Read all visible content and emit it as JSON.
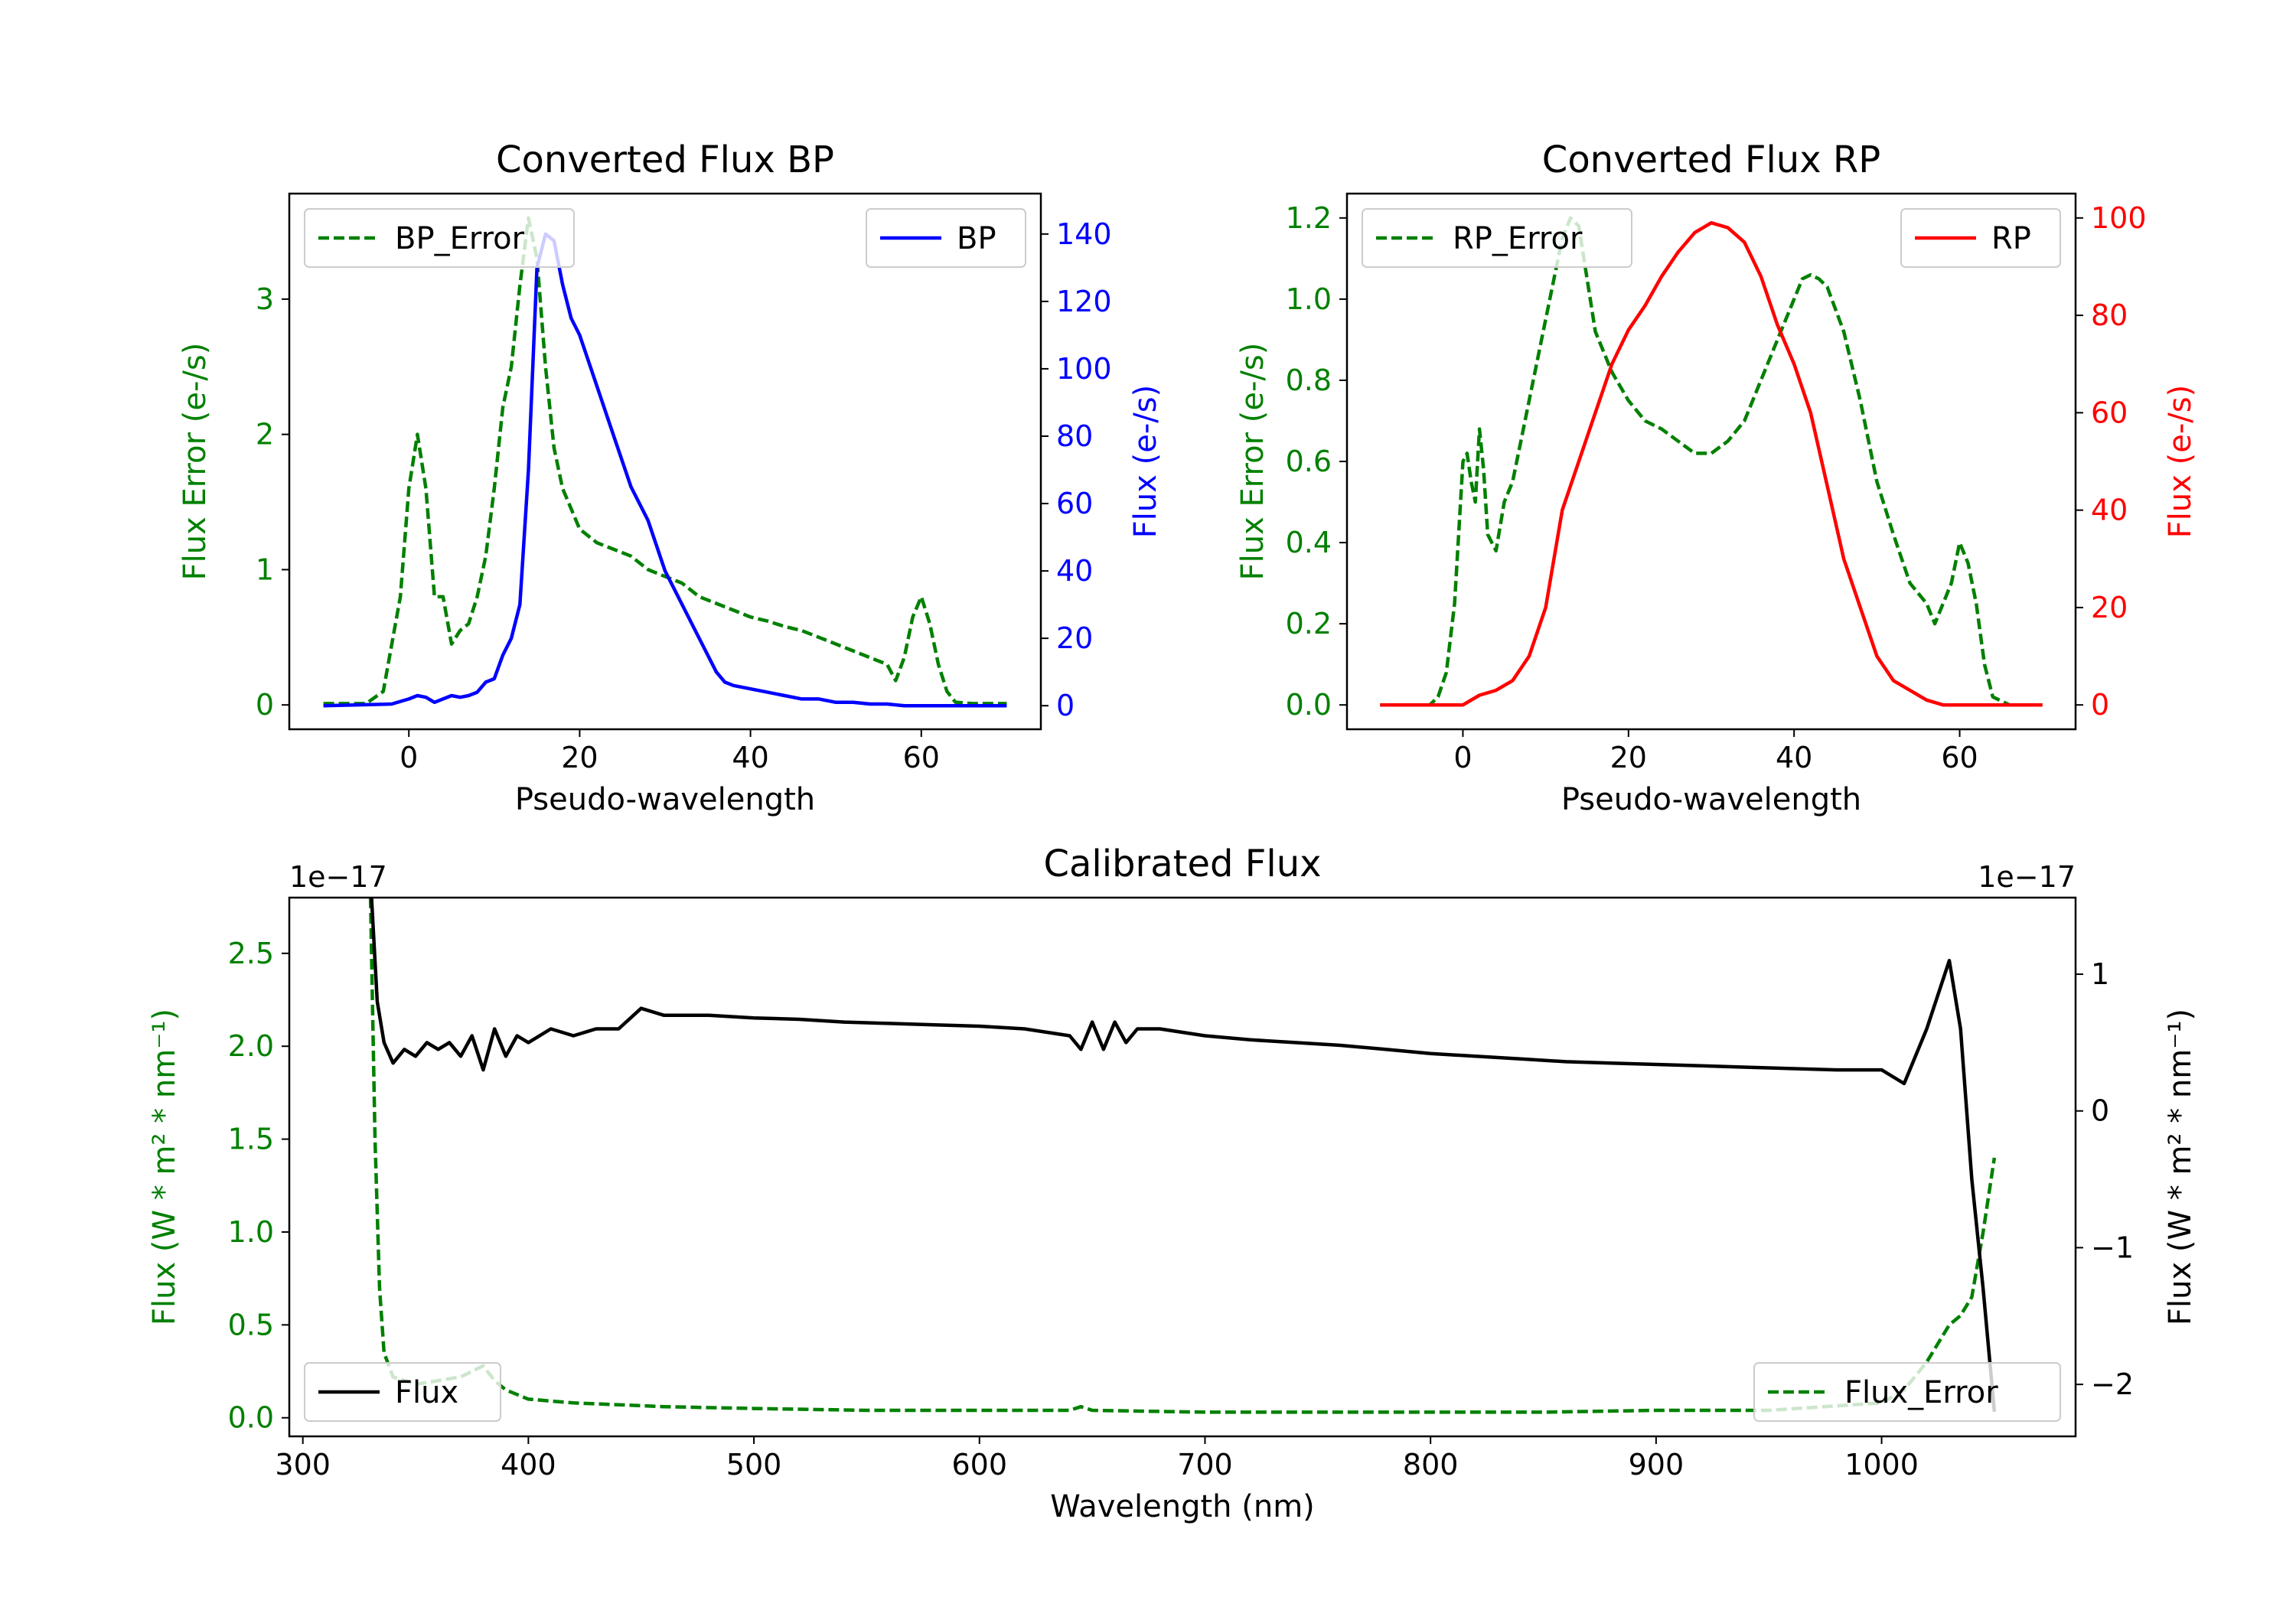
{
  "chart_data": [
    {
      "type": "line",
      "title": "Converted Flux BP",
      "xlabel": "Pseudo-wavelength",
      "ylabel_left": "Flux Error (e-/s)",
      "ylabel_right": "Flux (e-/s)",
      "xlim": [
        -14,
        74
      ],
      "ylim_left": [
        -0.18,
        3.78
      ],
      "ylim_right": [
        -7,
        152
      ],
      "xticks": [
        0,
        20,
        40,
        60
      ],
      "yticks_left": [
        0,
        1,
        2,
        3
      ],
      "yticks_right": [
        0,
        20,
        40,
        60,
        80,
        100,
        120,
        140
      ],
      "legend": [
        {
          "label": "BP_Error",
          "placement": "top-left",
          "style": "dashed",
          "color": "#008000"
        },
        {
          "label": "BP",
          "placement": "top-right",
          "style": "solid",
          "color": "#0000ff"
        }
      ],
      "series": [
        {
          "name": "BP_Error",
          "axis": "left",
          "color": "#008000",
          "style": "dashed",
          "x": [
            -10,
            -5,
            -3,
            -1,
            0,
            1,
            2,
            3,
            4,
            5,
            6,
            7,
            8,
            9,
            10,
            11,
            12,
            13,
            14,
            15,
            16,
            17,
            18,
            19,
            20,
            22,
            24,
            26,
            28,
            30,
            32,
            34,
            36,
            38,
            40,
            42,
            44,
            46,
            48,
            50,
            52,
            54,
            56,
            57,
            58,
            59,
            60,
            61,
            62,
            63,
            64,
            66,
            70
          ],
          "y": [
            0.01,
            0.01,
            0.1,
            0.8,
            1.6,
            2.0,
            1.6,
            0.8,
            0.8,
            0.45,
            0.55,
            0.6,
            0.8,
            1.1,
            1.6,
            2.2,
            2.5,
            3.1,
            3.6,
            3.3,
            2.5,
            1.9,
            1.6,
            1.45,
            1.3,
            1.2,
            1.15,
            1.1,
            1.0,
            0.95,
            0.9,
            0.8,
            0.75,
            0.7,
            0.65,
            0.62,
            0.58,
            0.55,
            0.5,
            0.45,
            0.4,
            0.35,
            0.3,
            0.18,
            0.35,
            0.65,
            0.8,
            0.6,
            0.3,
            0.1,
            0.02,
            0.01,
            0.01
          ]
        },
        {
          "name": "BP",
          "axis": "right",
          "color": "#0000ff",
          "style": "solid",
          "x": [
            -10,
            -2,
            0,
            1,
            2,
            3,
            4,
            5,
            6,
            7,
            8,
            9,
            10,
            11,
            12,
            13,
            14,
            15,
            16,
            17,
            18,
            19,
            20,
            22,
            24,
            26,
            28,
            30,
            32,
            34,
            36,
            37,
            38,
            40,
            42,
            44,
            46,
            48,
            50,
            52,
            54,
            56,
            58,
            60,
            62,
            64,
            66,
            68,
            70
          ],
          "y": [
            0,
            0.5,
            2,
            3,
            2.5,
            1,
            2,
            3,
            2.5,
            3,
            4,
            7,
            8,
            15,
            20,
            30,
            70,
            130,
            140,
            138,
            125,
            115,
            110,
            95,
            80,
            65,
            55,
            40,
            30,
            20,
            10,
            7,
            6,
            5,
            4,
            3,
            2,
            2,
            1,
            1,
            0.5,
            0.5,
            0,
            0,
            0,
            0,
            0,
            0,
            0
          ]
        }
      ]
    },
    {
      "type": "line",
      "title": "Converted Flux RP",
      "xlabel": "Pseudo-wavelength",
      "ylabel_left": "Flux Error (e-/s)",
      "ylabel_right": "Flux (e-/s)",
      "xlim": [
        -14,
        74
      ],
      "ylim_left": [
        -0.06,
        1.26
      ],
      "ylim_right": [
        -5,
        105
      ],
      "xticks": [
        0,
        20,
        40,
        60
      ],
      "yticks_left": [
        0.0,
        0.2,
        0.4,
        0.6,
        0.8,
        1.0,
        1.2
      ],
      "yticks_right": [
        0,
        20,
        40,
        60,
        80,
        100
      ],
      "legend": [
        {
          "label": "RP_Error",
          "placement": "top-left",
          "style": "dashed",
          "color": "#008000"
        },
        {
          "label": "RP",
          "placement": "top-right",
          "style": "solid",
          "color": "#ff0000"
        }
      ],
      "series": [
        {
          "name": "RP_Error",
          "axis": "left",
          "color": "#008000",
          "style": "dashed",
          "x": [
            -10,
            -4,
            -3,
            -2,
            -1,
            0,
            0.5,
            1,
            1.5,
            2,
            2.5,
            3,
            4,
            5,
            6,
            8,
            10,
            12,
            13,
            14,
            15,
            16,
            18,
            20,
            22,
            24,
            26,
            28,
            30,
            32,
            34,
            36,
            38,
            40,
            41,
            42,
            43,
            44,
            46,
            48,
            50,
            52,
            54,
            56,
            57,
            58,
            59,
            60,
            61,
            62,
            63,
            64,
            66,
            70
          ],
          "y": [
            0,
            0,
            0.02,
            0.08,
            0.25,
            0.6,
            0.62,
            0.55,
            0.5,
            0.68,
            0.58,
            0.42,
            0.38,
            0.5,
            0.55,
            0.75,
            0.95,
            1.15,
            1.2,
            1.18,
            1.05,
            0.92,
            0.82,
            0.75,
            0.7,
            0.68,
            0.65,
            0.62,
            0.62,
            0.65,
            0.7,
            0.8,
            0.9,
            1.0,
            1.05,
            1.06,
            1.05,
            1.03,
            0.92,
            0.75,
            0.55,
            0.42,
            0.3,
            0.25,
            0.2,
            0.25,
            0.3,
            0.4,
            0.35,
            0.25,
            0.1,
            0.02,
            0,
            0
          ]
        },
        {
          "name": "RP",
          "axis": "right",
          "color": "#ff0000",
          "style": "solid",
          "x": [
            -10,
            -4,
            -2,
            0,
            2,
            4,
            6,
            8,
            10,
            12,
            14,
            15,
            16,
            17,
            18,
            20,
            22,
            24,
            26,
            28,
            30,
            32,
            34,
            36,
            38,
            40,
            42,
            44,
            46,
            48,
            50,
            52,
            54,
            56,
            58,
            60,
            62,
            66,
            70
          ],
          "y": [
            0,
            0,
            0,
            0,
            2,
            3,
            5,
            10,
            20,
            40,
            50,
            55,
            60,
            65,
            70,
            77,
            82,
            88,
            93,
            97,
            99,
            98,
            95,
            88,
            78,
            70,
            60,
            45,
            30,
            20,
            10,
            5,
            3,
            1,
            0,
            0,
            0,
            0,
            0
          ]
        }
      ]
    },
    {
      "type": "line",
      "title": "Calibrated Flux",
      "xlabel": "Wavelength (nm)",
      "ylabel_left": "Flux (W * m² * nm⁻¹)",
      "ylabel_right": "Flux (W * m² * nm⁻¹)",
      "offset_left": "1e−17",
      "offset_right": "1e−17",
      "xlim": [
        294,
        1086
      ],
      "ylim_left": [
        -0.1,
        2.8
      ],
      "ylim_right": [
        -2.38,
        1.56
      ],
      "xticks": [
        300,
        400,
        500,
        600,
        700,
        800,
        900,
        1000
      ],
      "yticks_left": [
        0.0,
        0.5,
        1.0,
        1.5,
        2.0,
        2.5
      ],
      "yticks_right": [
        -2,
        -1,
        0,
        1
      ],
      "ytick_labels_left": [
        "0.0",
        "0.5",
        "1.0",
        "1.5",
        "2.0",
        "2.5"
      ],
      "ytick_labels_right": [
        "−2",
        "−1",
        "0",
        "1"
      ],
      "legend": [
        {
          "label": "Flux",
          "placement": "bottom-left",
          "style": "solid",
          "color": "#000000"
        },
        {
          "label": "Flux_Error",
          "placement": "bottom-right",
          "style": "dashed",
          "color": "#008000"
        }
      ],
      "series": [
        {
          "name": "Flux_Error",
          "axis": "left",
          "color": "#008000",
          "style": "dashed",
          "x": [
            330,
            332,
            334,
            336,
            340,
            350,
            360,
            370,
            380,
            385,
            390,
            400,
            420,
            440,
            460,
            500,
            550,
            600,
            640,
            645,
            650,
            700,
            750,
            800,
            850,
            900,
            950,
            1000,
            1010,
            1020,
            1030,
            1035,
            1040,
            1045,
            1050
          ],
          "y": [
            2.8,
            1.5,
            0.7,
            0.35,
            0.22,
            0.18,
            0.2,
            0.22,
            0.28,
            0.2,
            0.15,
            0.1,
            0.08,
            0.07,
            0.06,
            0.05,
            0.04,
            0.04,
            0.04,
            0.06,
            0.04,
            0.03,
            0.03,
            0.03,
            0.03,
            0.04,
            0.04,
            0.08,
            0.15,
            0.3,
            0.5,
            0.55,
            0.65,
            1.0,
            1.4
          ]
        },
        {
          "name": "Flux",
          "axis": "right",
          "color": "#000000",
          "style": "solid",
          "x": [
            330,
            333,
            336,
            340,
            345,
            350,
            355,
            360,
            365,
            370,
            375,
            380,
            385,
            390,
            395,
            400,
            410,
            420,
            430,
            440,
            450,
            460,
            480,
            500,
            520,
            540,
            560,
            580,
            600,
            620,
            640,
            645,
            650,
            655,
            660,
            665,
            670,
            680,
            700,
            720,
            740,
            760,
            780,
            800,
            820,
            840,
            860,
            880,
            900,
            920,
            940,
            960,
            980,
            1000,
            1010,
            1020,
            1030,
            1035,
            1040,
            1045,
            1050
          ],
          "y": [
            1.7,
            0.8,
            0.5,
            0.35,
            0.45,
            0.4,
            0.5,
            0.45,
            0.5,
            0.4,
            0.55,
            0.3,
            0.6,
            0.4,
            0.55,
            0.5,
            0.6,
            0.55,
            0.6,
            0.6,
            0.75,
            0.7,
            0.7,
            0.68,
            0.67,
            0.65,
            0.64,
            0.63,
            0.62,
            0.6,
            0.55,
            0.45,
            0.65,
            0.45,
            0.65,
            0.5,
            0.6,
            0.6,
            0.55,
            0.52,
            0.5,
            0.48,
            0.45,
            0.42,
            0.4,
            0.38,
            0.36,
            0.35,
            0.34,
            0.33,
            0.32,
            0.31,
            0.3,
            0.3,
            0.2,
            0.6,
            1.1,
            0.6,
            -0.5,
            -1.3,
            -2.2
          ]
        }
      ]
    }
  ]
}
